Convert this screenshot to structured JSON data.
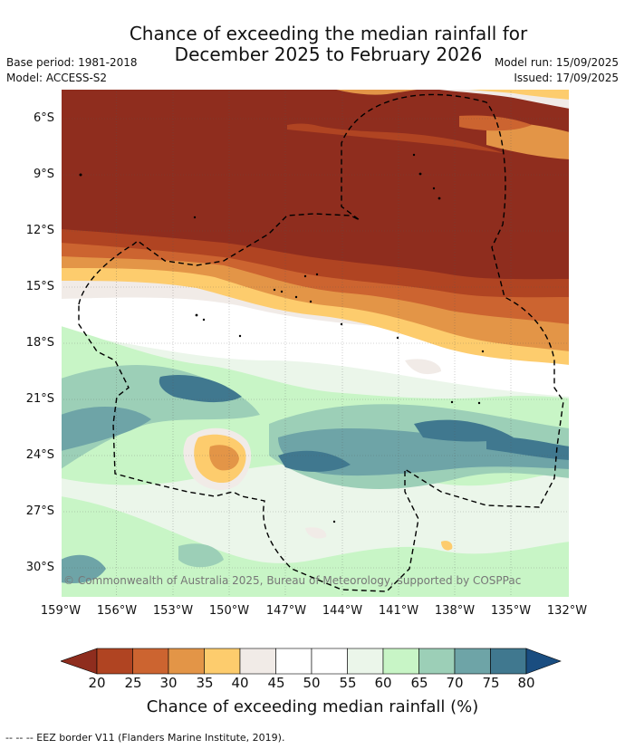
{
  "header": {
    "title_line1": "Chance of exceeding the median rainfall for",
    "title_line2": "December 2025 to February 2026",
    "base_period": "Base period: 1981-2018",
    "model": "Model: ACCESS-S2",
    "model_run": "Model run: 15/09/2025",
    "issued": "Issued: 17/09/2025"
  },
  "map": {
    "lat_labels": [
      "6°S",
      "9°S",
      "12°S",
      "15°S",
      "18°S",
      "21°S",
      "24°S",
      "27°S",
      "30°S"
    ],
    "lon_labels": [
      "159°W",
      "156°W",
      "153°W",
      "150°W",
      "147°W",
      "144°W",
      "141°W",
      "138°W",
      "135°W",
      "132°W"
    ],
    "copyright": "© Commonwealth of Australia 2025, Bureau of Meteorology, supported by COSPPac"
  },
  "colorbar": {
    "ticks": [
      "20",
      "25",
      "30",
      "35",
      "40",
      "45",
      "50",
      "55",
      "60",
      "65",
      "70",
      "75",
      "80"
    ],
    "colors": [
      "#8f2d1e",
      "#b04422",
      "#cc6430",
      "#e39547",
      "#fdcc6d",
      "#f1ebe7",
      "#ffffff",
      "#ffffff",
      "#ebf6ea",
      "#c8f5c6",
      "#9ccfb7",
      "#6ea4a7",
      "#40788f",
      "#1a4d80"
    ],
    "title": "Chance of exceeding median rainfall (%)"
  },
  "legend": {
    "text": "--  --  -- EEZ border V11 (Flanders Marine Institute, 2019)."
  }
}
